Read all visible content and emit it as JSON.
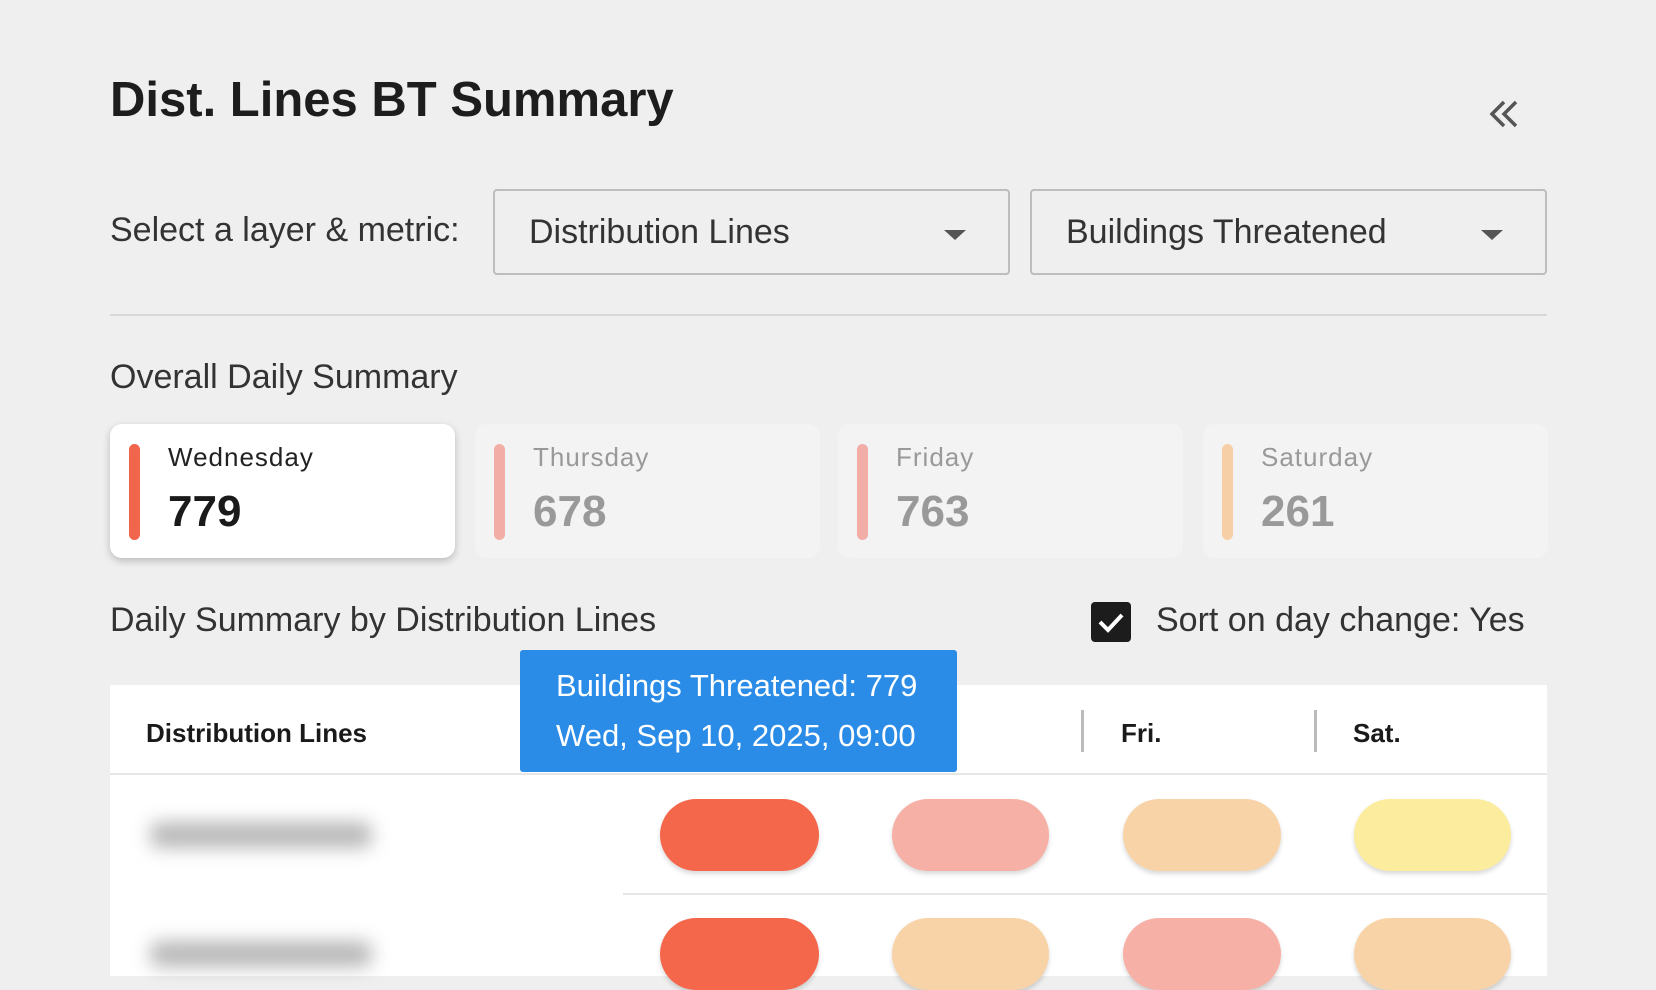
{
  "header": {
    "title": "Dist. Lines BT Summary"
  },
  "controls": {
    "label": "Select a layer & metric:",
    "layer": "Distribution Lines",
    "metric": "Buildings Threatened"
  },
  "overall": {
    "title": "Overall Daily Summary",
    "cards": [
      {
        "day": "Wednesday",
        "value": 779,
        "color": "#f0654b",
        "selected": true
      },
      {
        "day": "Thursday",
        "value": 678,
        "color": "#f2aea6",
        "selected": false
      },
      {
        "day": "Friday",
        "value": 763,
        "color": "#f2aea6",
        "selected": false
      },
      {
        "day": "Saturday",
        "value": 261,
        "color": "#f6cfa6",
        "selected": false
      }
    ]
  },
  "daily": {
    "title": "Daily Summary by Distribution Lines",
    "sort_label": "Sort on day change: Yes",
    "sort_checked": true
  },
  "tooltip": {
    "line1": "Buildings Threatened: 779",
    "line2": "Wed, Sep 10, 2025, 09:00"
  },
  "table": {
    "headers": [
      "Distribution Lines",
      "Fri.",
      "Sat."
    ],
    "rows": [
      {
        "colors": [
          "#f5674b",
          "#f7b0a6",
          "#f9d3a8",
          "#fcec9d"
        ]
      },
      {
        "colors": [
          "#f5674b",
          "#f9d3a8",
          "#f7b0a6",
          "#f9d3a8"
        ]
      }
    ]
  }
}
